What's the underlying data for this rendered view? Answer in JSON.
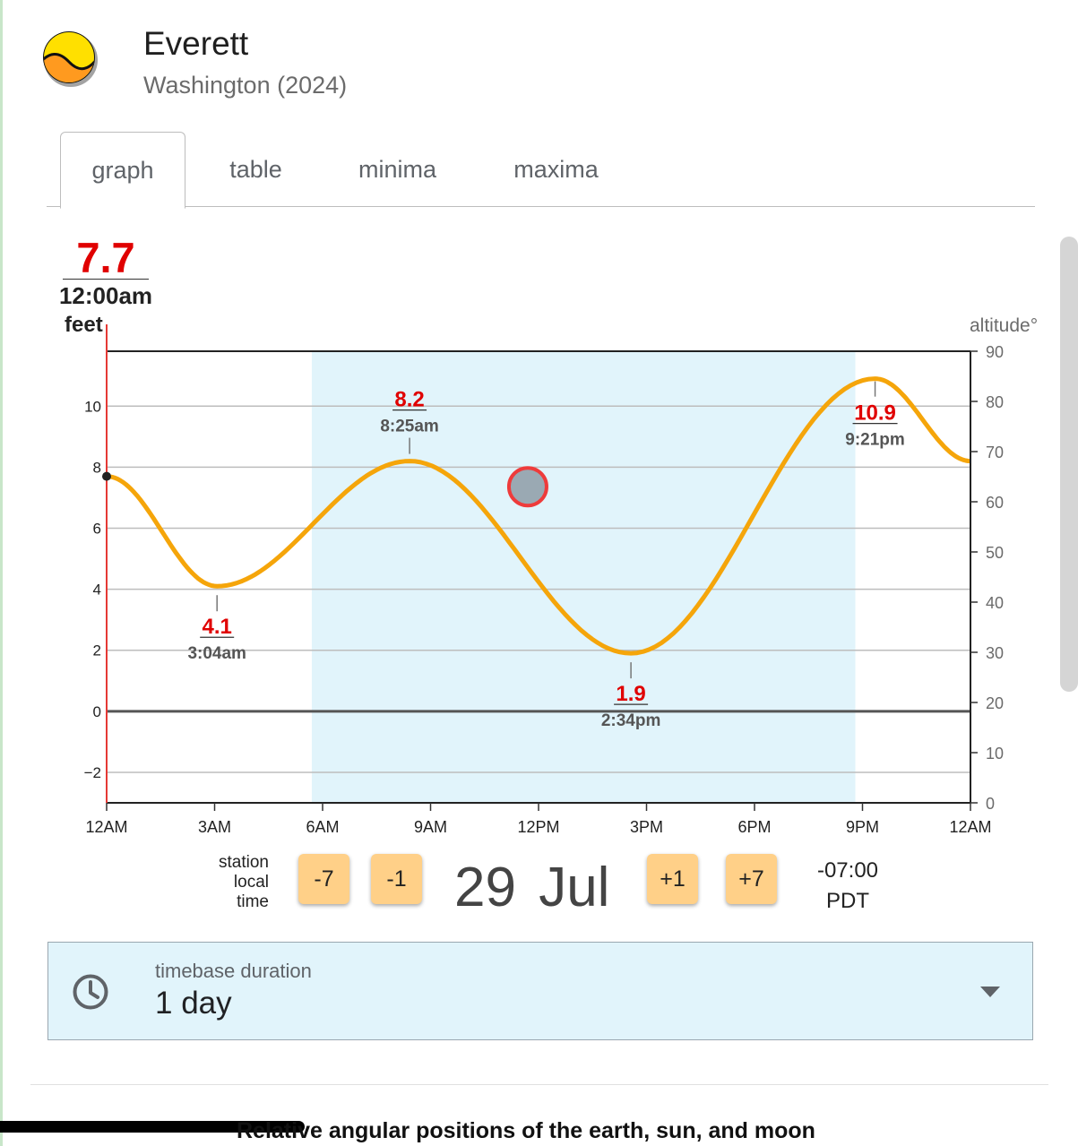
{
  "header": {
    "title": "Everett",
    "subtitle": "Washington (2024)"
  },
  "tabs": [
    {
      "label": "graph",
      "active": true
    },
    {
      "label": "table",
      "active": false
    },
    {
      "label": "minima",
      "active": false
    },
    {
      "label": "maxima",
      "active": false
    }
  ],
  "current": {
    "value": "7.7",
    "time": "12:00am",
    "unit": "feet"
  },
  "altitude_label": "altitude°",
  "chart_data": {
    "type": "line",
    "series": [],
    "x_ticks": [
      "12AM",
      "3AM",
      "6AM",
      "9AM",
      "12PM",
      "3PM",
      "6PM",
      "9PM",
      "12AM"
    ],
    "xlim_hours": [
      0,
      24
    ],
    "y_left": {
      "ticks": [
        "−2",
        "0",
        "2",
        "4",
        "6",
        "8",
        "10"
      ],
      "range": [
        -3,
        11.8
      ],
      "label": "feet"
    },
    "y_right": {
      "ticks": [
        "0",
        "10",
        "20",
        "30",
        "40",
        "50",
        "60",
        "70",
        "80",
        "90"
      ],
      "range": [
        0,
        90
      ],
      "label": "altitude°"
    },
    "daylight_hours": [
      5.7,
      20.8
    ],
    "extrema": [
      {
        "hour": 0,
        "value": 7.7,
        "kind": "start"
      },
      {
        "hour": 3.067,
        "value": 4.1,
        "label": "4.1",
        "time": "3:04am",
        "kind": "low"
      },
      {
        "hour": 8.417,
        "value": 8.2,
        "label": "8.2",
        "time": "8:25am",
        "kind": "high"
      },
      {
        "hour": 14.567,
        "value": 1.9,
        "label": "1.9",
        "time": "2:34pm",
        "kind": "low"
      },
      {
        "hour": 21.35,
        "value": 10.9,
        "label": "10.9",
        "time": "9:21pm",
        "kind": "high"
      },
      {
        "hour": 24,
        "value": 8.2,
        "kind": "end"
      }
    ],
    "sun": {
      "hour": 11.7,
      "altitude": 63
    },
    "grid": true,
    "colors": {
      "tide": "#f5a50a",
      "daylight": "#e1f4fb",
      "sun_fill": "#9aa9b3",
      "sun_stroke": "#ee3b3b",
      "label": "#e00000"
    }
  },
  "controls": {
    "tz_label": [
      "station",
      "local",
      "time"
    ],
    "buttons": [
      "-7",
      "-1",
      "+1",
      "+7"
    ],
    "date": "29 Jul",
    "offset": "-07:00",
    "tz": "PDT"
  },
  "duration": {
    "label": "timebase duration",
    "value": "1 day"
  },
  "section_title": "Relative angular positions of the earth, sun, and moon"
}
